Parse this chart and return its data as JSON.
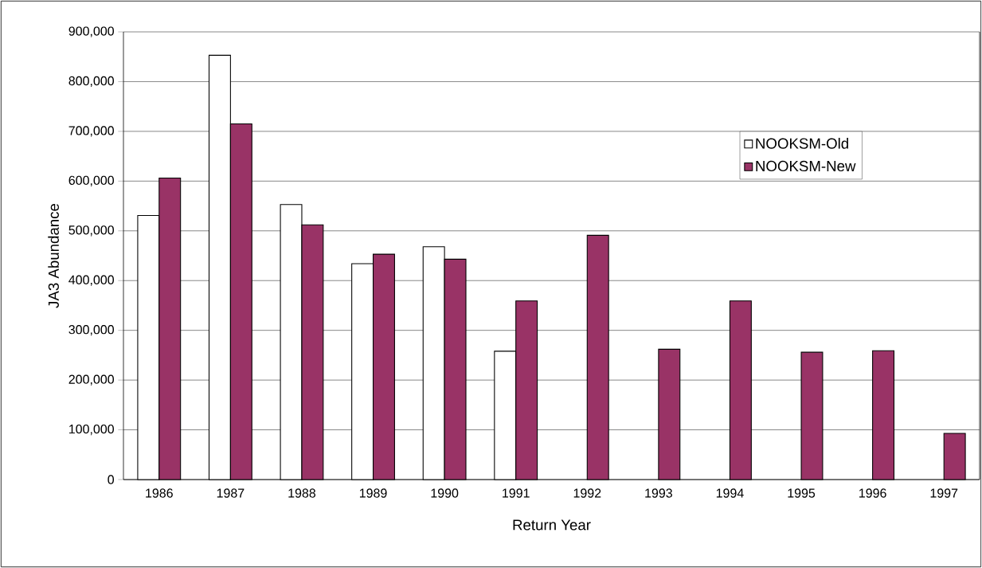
{
  "chart_data": {
    "type": "bar",
    "xlabel": "Return Year",
    "ylabel": "JA3 Abundance",
    "categories": [
      "1986",
      "1987",
      "1988",
      "1989",
      "1990",
      "1991",
      "1992",
      "1993",
      "1994",
      "1995",
      "1996",
      "1997"
    ],
    "series": [
      {
        "name": "NOOKSM-Old",
        "color": "#ffffff",
        "values": [
          531000,
          853000,
          553000,
          434000,
          468000,
          258000,
          null,
          null,
          null,
          null,
          null,
          null
        ]
      },
      {
        "name": "NOOKSM-New",
        "color": "#993366",
        "values": [
          606000,
          715000,
          512000,
          453000,
          443000,
          359000,
          491000,
          262000,
          359000,
          256000,
          259000,
          93000
        ]
      }
    ],
    "ylim": [
      0,
      900000
    ],
    "yticks": [
      {
        "value": 0,
        "label": "0"
      },
      {
        "value": 100000,
        "label": "100,000"
      },
      {
        "value": 200000,
        "label": "200,000"
      },
      {
        "value": 300000,
        "label": "300,000"
      },
      {
        "value": 400000,
        "label": "400,000"
      },
      {
        "value": 500000,
        "label": "500,000"
      },
      {
        "value": 600000,
        "label": "600,000"
      },
      {
        "value": 700000,
        "label": "700,000"
      },
      {
        "value": 800000,
        "label": "800,000"
      },
      {
        "value": 900000,
        "label": "900,000"
      }
    ],
    "grid": "y",
    "legend": "top right"
  }
}
